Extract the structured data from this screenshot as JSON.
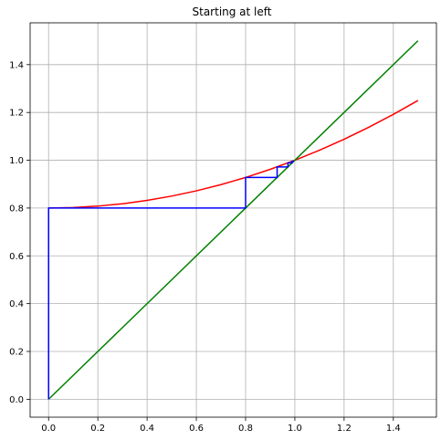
{
  "chart_data": {
    "type": "line",
    "title": "Starting at left",
    "xlabel": "",
    "ylabel": "",
    "xlim": [
      -0.075,
      1.575
    ],
    "ylim": [
      -0.075,
      1.575
    ],
    "xticks": [
      0.0,
      0.2,
      0.4,
      0.6,
      0.8,
      1.0,
      1.2,
      1.4
    ],
    "yticks": [
      0.0,
      0.2,
      0.4,
      0.6,
      0.8,
      1.0,
      1.2,
      1.4
    ],
    "xtick_labels": [
      "0.0",
      "0.2",
      "0.4",
      "0.6",
      "0.8",
      "1.0",
      "1.2",
      "1.4"
    ],
    "ytick_labels": [
      "0.0",
      "0.2",
      "0.4",
      "0.6",
      "0.8",
      "1.0",
      "1.2",
      "1.4"
    ],
    "grid": true,
    "series": [
      {
        "color": "#ff0000",
        "function": "0.8 + 0.2*x^2",
        "x": [
          0.0,
          0.1,
          0.2,
          0.3,
          0.4,
          0.5,
          0.6,
          0.7,
          0.8,
          0.9,
          1.0,
          1.1,
          1.2,
          1.3,
          1.4,
          1.5
        ],
        "y": [
          0.8,
          0.802,
          0.808,
          0.818,
          0.832,
          0.85,
          0.872,
          0.898,
          0.928,
          0.962,
          1.0,
          1.042,
          1.088,
          1.138,
          1.192,
          1.25
        ]
      },
      {
        "color": "#008000",
        "function": "x",
        "x": [
          0.0,
          1.5
        ],
        "y": [
          0.0,
          1.5
        ]
      },
      {
        "color": "#0000ff",
        "x": [
          0.0,
          0.0,
          0.8,
          0.8,
          0.928,
          0.928,
          0.972,
          0.972,
          0.989,
          0.989,
          0.996
        ],
        "y": [
          0.0,
          0.8,
          0.8,
          0.928,
          0.928,
          0.972,
          0.972,
          0.989,
          0.989,
          0.996,
          0.996
        ]
      }
    ]
  }
}
